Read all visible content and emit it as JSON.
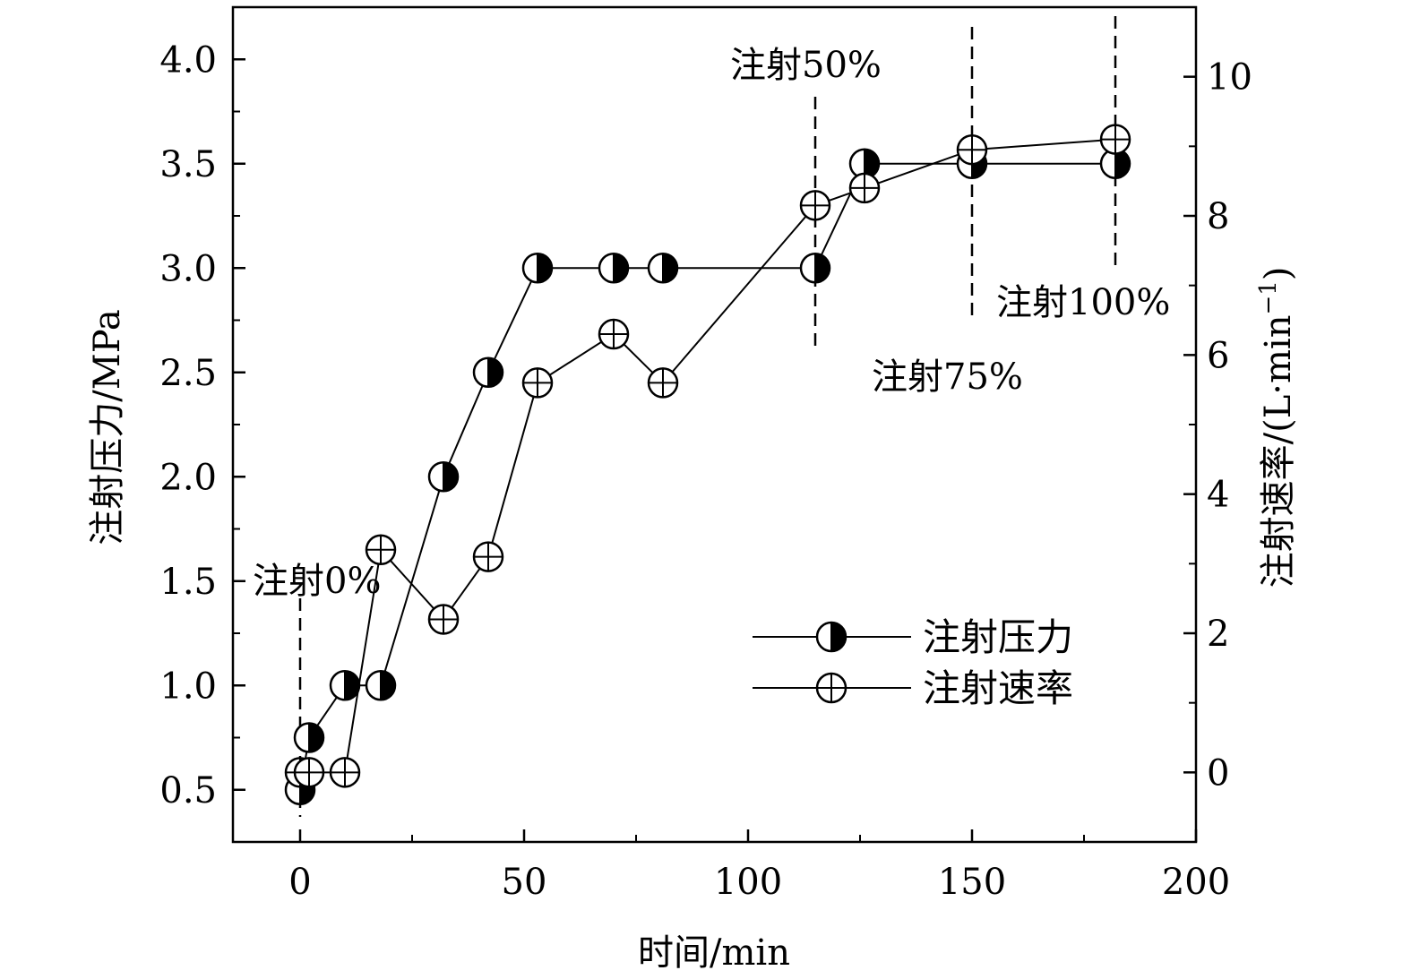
{
  "chart_data": {
    "type": "line",
    "xlabel": "时间/min",
    "ylabel_left": "注射压力/MPa",
    "ylabel_right": "注射速率/(L·min",
    "ylabel_right_sup": "−1",
    "ylabel_right_close": ")",
    "xlim": [
      -15,
      200
    ],
    "ylim_left": [
      0.25,
      4.25
    ],
    "ylim_right": [
      -1,
      11
    ],
    "x_ticks": [
      0,
      50,
      100,
      150,
      200
    ],
    "x_tick_labels": [
      "0",
      "50",
      "100",
      "150",
      "200"
    ],
    "y_left_ticks": [
      0.5,
      1.0,
      1.5,
      2.0,
      2.5,
      3.0,
      3.5,
      4.0
    ],
    "y_left_tick_labels": [
      "0.5",
      "1.0",
      "1.5",
      "2.0",
      "2.5",
      "3.0",
      "3.5",
      "4.0"
    ],
    "y_right_ticks": [
      0,
      2,
      4,
      6,
      8,
      10
    ],
    "y_right_tick_labels": [
      "0",
      "2",
      "4",
      "6",
      "8",
      "10"
    ],
    "legend_position": "bottom-right",
    "grid": false,
    "series": [
      {
        "name": "注射压力",
        "axis": "left",
        "marker": "half-filled-circle",
        "x": [
          0,
          2,
          10,
          18,
          32,
          42,
          53,
          70,
          81,
          115,
          126,
          150,
          182
        ],
        "y": [
          0.5,
          0.75,
          1.0,
          1.0,
          2.0,
          2.5,
          3.0,
          3.0,
          3.0,
          3.0,
          3.5,
          3.5,
          3.5
        ]
      },
      {
        "name": "注射速率",
        "axis": "right",
        "marker": "crossed-circle",
        "x": [
          0,
          2,
          10,
          18,
          32,
          42,
          53,
          70,
          81,
          115,
          126,
          150,
          182
        ],
        "y": [
          0.0,
          0.0,
          0.0,
          3.2,
          2.2,
          3.1,
          5.6,
          6.3,
          5.6,
          8.15,
          8.4,
          8.95,
          9.1
        ]
      }
    ],
    "annotations": [
      {
        "text": "注射0%",
        "x": 0
      },
      {
        "text": "注射50%",
        "x": 115
      },
      {
        "text": "注射75%",
        "x": 150
      },
      {
        "text": "注射100%",
        "x": 182
      }
    ]
  }
}
